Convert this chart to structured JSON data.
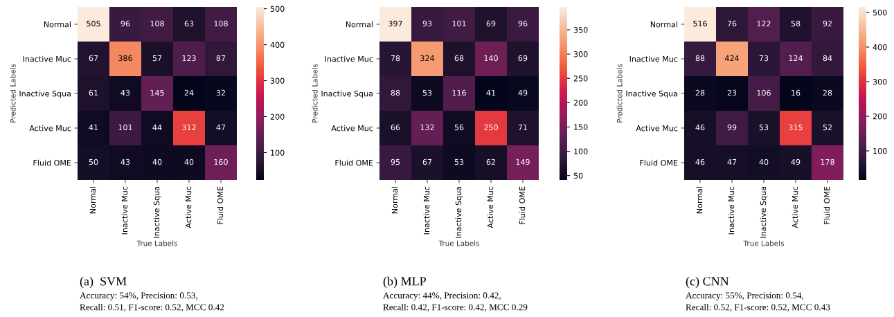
{
  "chart_data": [
    {
      "type": "heatmap",
      "title": "(a)  SVM",
      "annotations": [
        "Accuracy: 54%, Precision: 0.53,",
        "Recall: 0.51, F1-score: 0.52, MCC 0.42"
      ],
      "xlabel": "True Labels",
      "ylabel": "Predicted Labels",
      "categories": [
        "Normal",
        "Inactive Muc",
        "Inactive Squa",
        "Active Muc",
        "Fluid OME"
      ],
      "y_categories": [
        "Normal",
        "Inactive Muc",
        "Inactive Squa",
        "Active Muc",
        "Fluid OME"
      ],
      "cells": [
        [
          505,
          96,
          108,
          63,
          108
        ],
        [
          67,
          386,
          57,
          123,
          87
        ],
        [
          61,
          43,
          145,
          24,
          32
        ],
        [
          41,
          101,
          44,
          312,
          47
        ],
        [
          50,
          43,
          40,
          40,
          160
        ]
      ],
      "clim": [
        24,
        505
      ],
      "cticks": [
        100,
        200,
        300,
        400,
        500
      ],
      "data_labels": true
    },
    {
      "type": "heatmap",
      "title": "(b) MLP",
      "annotations": [
        "Accuracy: 44%, Precision: 0.42,",
        "Recall: 0.42, F1-score: 0.42, MCC 0.29"
      ],
      "xlabel": "True Labels",
      "ylabel": "Predicted Labels",
      "categories": [
        "Normal",
        "Inactive Muc",
        "Inactive Squa",
        "Active Muc",
        "Fluid OME"
      ],
      "y_categories": [
        "Normal",
        "Inactive Muc",
        "Inactive Squa",
        "Active Muc",
        "Fluid OME"
      ],
      "cells": [
        [
          397,
          93,
          101,
          69,
          96
        ],
        [
          78,
          324,
          68,
          140,
          69
        ],
        [
          88,
          53,
          116,
          41,
          49
        ],
        [
          66,
          132,
          56,
          250,
          71
        ],
        [
          95,
          67,
          53,
          62,
          149
        ]
      ],
      "clim": [
        41,
        397
      ],
      "cticks": [
        50,
        100,
        150,
        200,
        250,
        300,
        350
      ],
      "data_labels": true
    },
    {
      "type": "heatmap",
      "title": "(c) CNN",
      "annotations": [
        "Accuracy: 55%, Precision: 0.54,",
        "Recall: 0.52, F1-score: 0.52, MCC 0.43"
      ],
      "xlabel": "True Labels",
      "ylabel": "Predicted Labels",
      "categories": [
        "Normal",
        "Inactive Muc",
        "Inactive Squa",
        "Active Muc",
        "Fluid OME"
      ],
      "y_categories": [
        "Normal",
        "Inactive Muc",
        "Inactive Squa",
        "Active Muc",
        "Fluid OME"
      ],
      "cells": [
        [
          516,
          76,
          122,
          58,
          92
        ],
        [
          88,
          424,
          73,
          124,
          84
        ],
        [
          28,
          23,
          106,
          16,
          28
        ],
        [
          46,
          99,
          53,
          315,
          52
        ],
        [
          46,
          47,
          40,
          49,
          178
        ]
      ],
      "clim": [
        16,
        516
      ],
      "cticks": [
        100,
        200,
        300,
        400,
        500
      ],
      "data_labels": true
    }
  ]
}
